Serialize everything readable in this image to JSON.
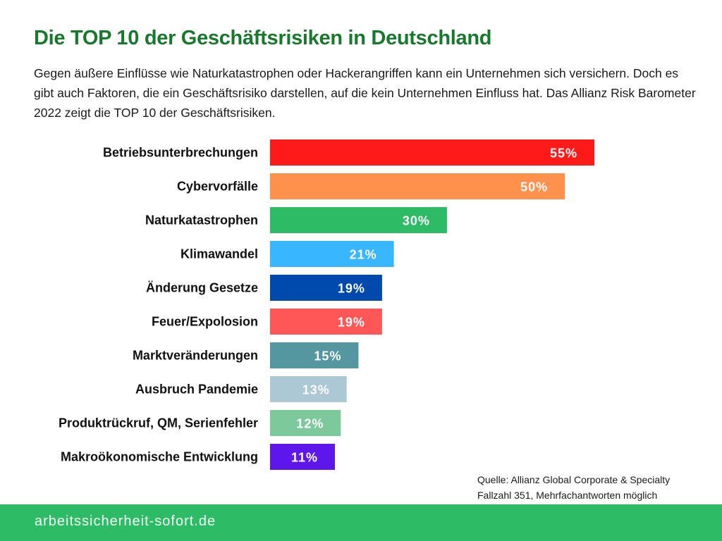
{
  "header": {
    "title": "Die TOP 10 der Geschäftsrisiken in Deutschland",
    "intro": "Gegen äußere Einflüsse wie Naturkatastrophen oder Hackerangriffen kann ein Unternehmen sich versichern. Doch es gibt auch Faktoren, die ein Geschäftsrisiko darstellen, auf die kein Unternehmen Einfluss hat. Das Allianz Risk Barometer 2022 zeigt die TOP 10 der Geschäftsrisiken."
  },
  "chart_data": {
    "type": "bar",
    "orientation": "horizontal",
    "title": "Die TOP 10 der Geschäftsrisiken in Deutschland",
    "xlabel": "",
    "ylabel": "",
    "unit": "%",
    "xlim": [
      0,
      55
    ],
    "grid": false,
    "legend": "none",
    "categories": [
      "Betriebsunterbrechungen",
      "Cybervorfälle",
      "Naturkatastrophen",
      "Klimawandel",
      "Änderung Gesetze",
      "Feuer/Expolosion",
      "Marktveränderungen",
      "Ausbruch Pandemie",
      "Produktrückruf, QM, Serienfehler",
      "Makroökonomische Entwicklung"
    ],
    "values": [
      55,
      50,
      30,
      21,
      19,
      19,
      15,
      13,
      12,
      11
    ],
    "data_labels": [
      "55%",
      "50%",
      "30%",
      "21%",
      "19%",
      "19%",
      "15%",
      "13%",
      "12%",
      "11%"
    ],
    "colors": [
      "#ff1a1a",
      "#ff914d",
      "#2dbb66",
      "#38b6ff",
      "#004aad",
      "#ff5757",
      "#5497a0",
      "#abc8d4",
      "#7ec99b",
      "#5e17eb"
    ]
  },
  "source": {
    "line1": "Quelle: Allianz Global Corporate & Specialty",
    "line2": "Fallzahl 351, Mehrfachantworten möglich"
  },
  "footer": {
    "text": "arbeitssicherheit-sofort.de"
  }
}
